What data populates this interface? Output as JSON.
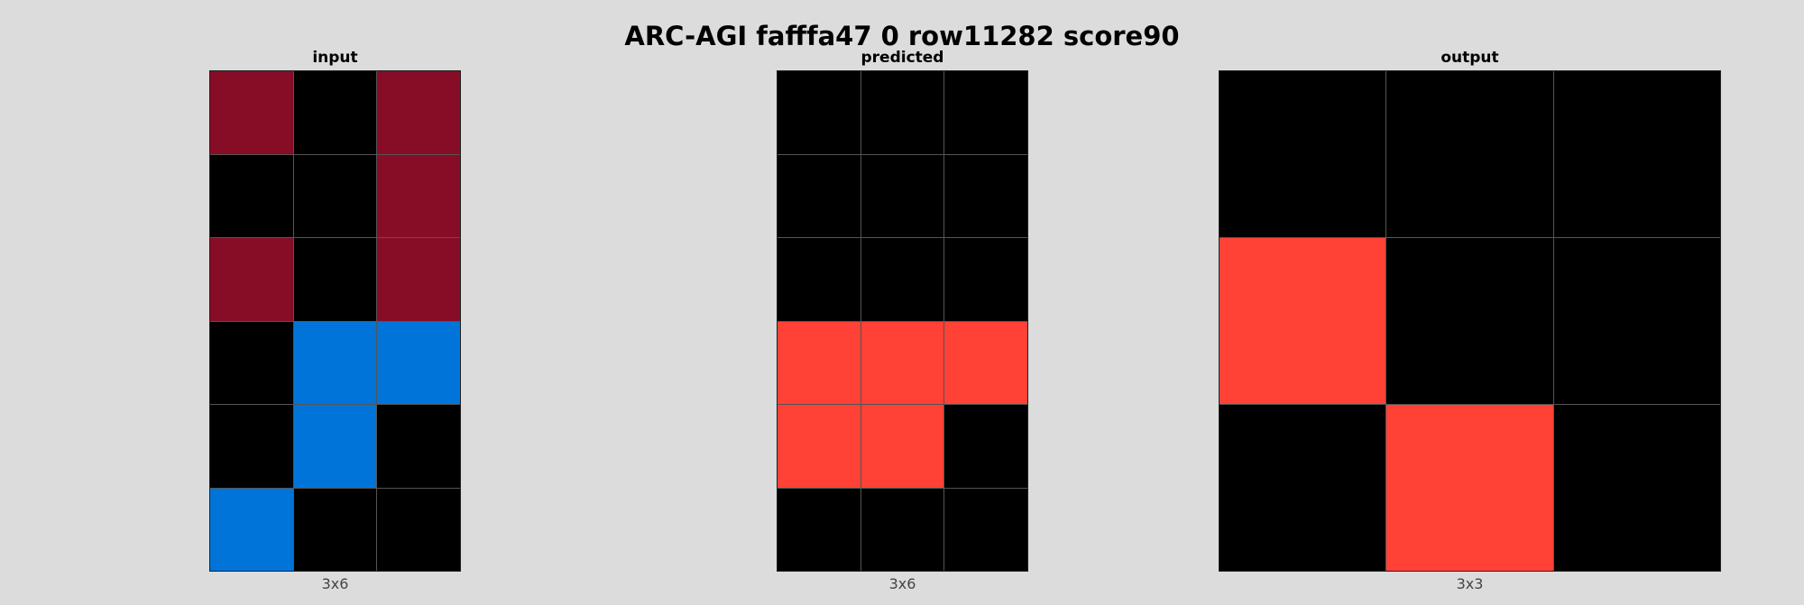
{
  "title": "ARC-AGI fafffa47 0 row11282 score90",
  "palette": {
    "0": "#000000",
    "1": "#0074d9",
    "2": "#ff4136",
    "9": "#870c25"
  },
  "panels": [
    {
      "id": "input",
      "label": "input",
      "dims": "3x6",
      "grid": [
        [
          9,
          0,
          9
        ],
        [
          0,
          0,
          9
        ],
        [
          9,
          0,
          9
        ],
        [
          0,
          1,
          1
        ],
        [
          0,
          1,
          0
        ],
        [
          1,
          0,
          0
        ]
      ]
    },
    {
      "id": "predicted",
      "label": "predicted",
      "dims": "3x6",
      "grid": [
        [
          0,
          0,
          0
        ],
        [
          0,
          0,
          0
        ],
        [
          0,
          0,
          0
        ],
        [
          2,
          2,
          2
        ],
        [
          2,
          2,
          0
        ],
        [
          0,
          0,
          0
        ]
      ]
    },
    {
      "id": "output",
      "label": "output",
      "dims": "3x3",
      "grid": [
        [
          0,
          0,
          0
        ],
        [
          2,
          0,
          0
        ],
        [
          0,
          2,
          0
        ]
      ]
    }
  ]
}
